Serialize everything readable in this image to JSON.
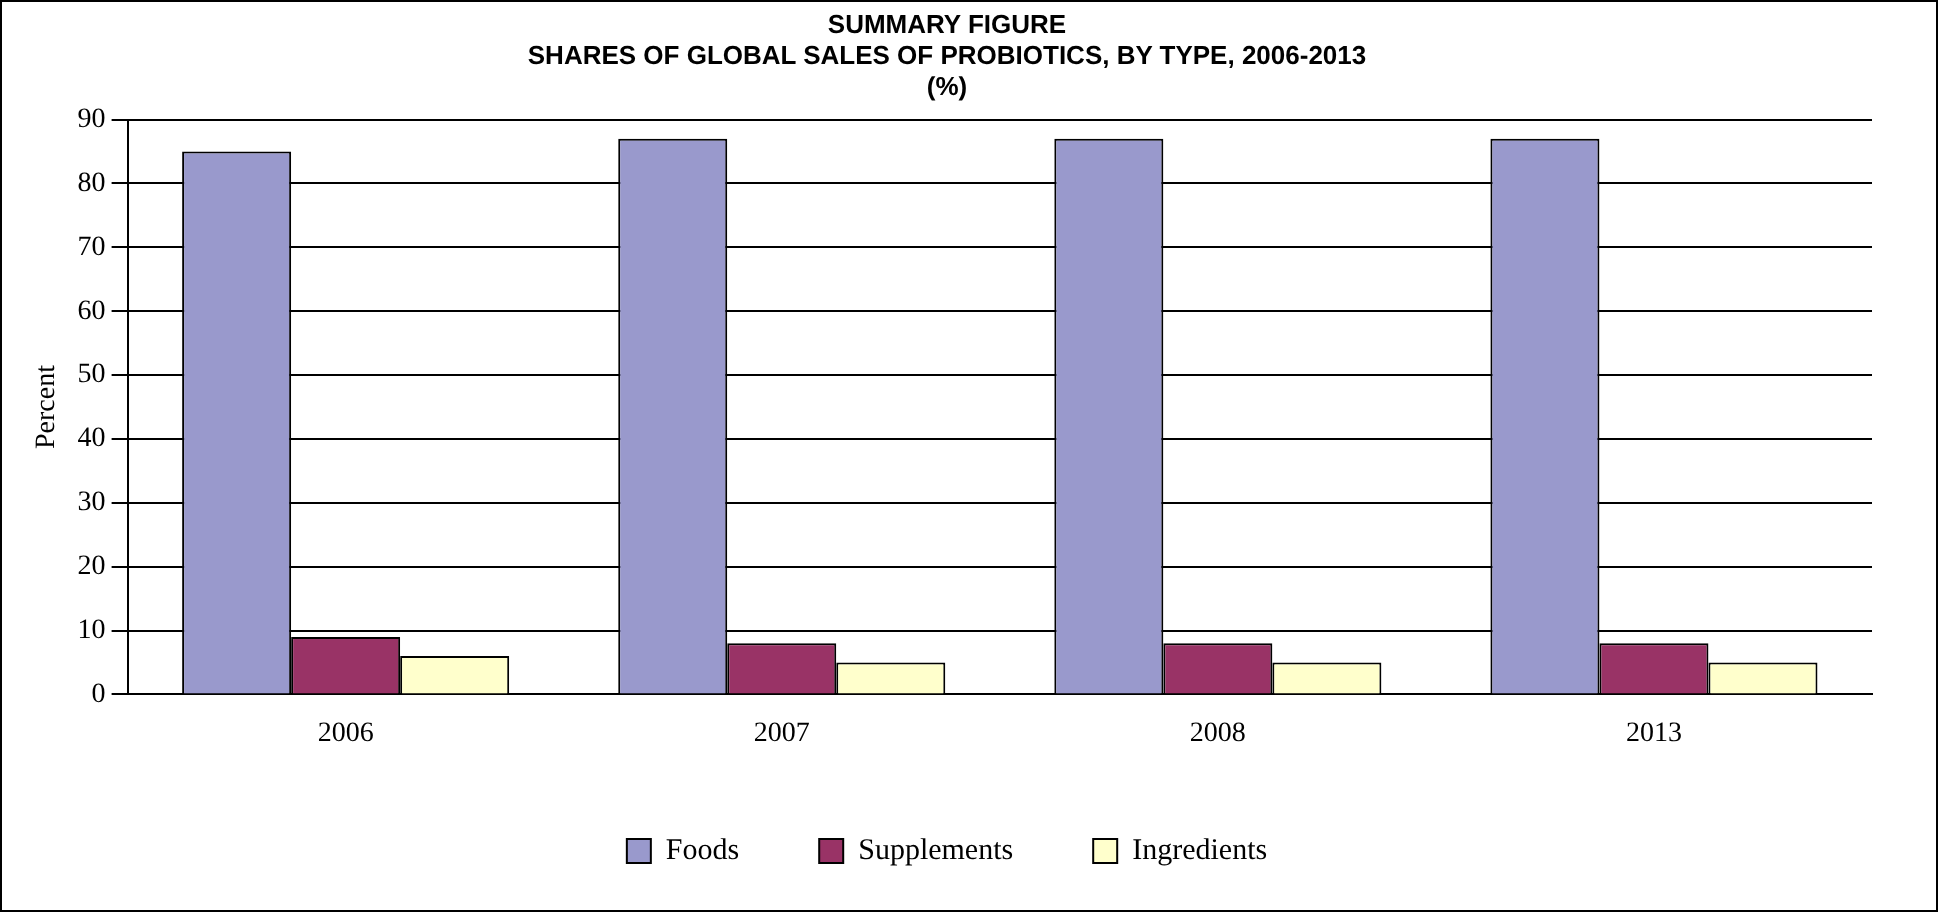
{
  "chart_data": {
    "type": "bar",
    "title": [
      "SUMMARY FIGURE",
      "SHARES OF GLOBAL SALES OF PROBIOTICS, BY TYPE, 2006-2013",
      "(%)"
    ],
    "ylabel": "Percent",
    "categories": [
      "2006",
      "2007",
      "2008",
      "2013"
    ],
    "series": [
      {
        "name": "Foods",
        "color": "#9999cc",
        "values": [
          85,
          87,
          87,
          87
        ]
      },
      {
        "name": "Supplements",
        "color": "#993366",
        "values": [
          9,
          8,
          8,
          8
        ]
      },
      {
        "name": "Ingredients",
        "color": "#ffffcc",
        "values": [
          6,
          5,
          5,
          5
        ]
      }
    ],
    "ylim": [
      0,
      90
    ],
    "yticks": [
      0,
      10,
      20,
      30,
      40,
      50,
      60,
      70,
      80,
      90
    ],
    "grid": "y",
    "legend": "bottom"
  }
}
